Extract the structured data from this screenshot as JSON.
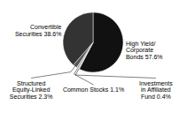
{
  "chart_data": {
    "type": "pie",
    "categories": [
      "High Yield/\nCorporate\nBonds 57.6%",
      "Investments\nin Affiliated\nFund 0.4%",
      "Common Stocks 1.1%",
      "Structured\nEquity-Linked\nSecurities 2.3%",
      "Convertible\nSecurities 38.6%"
    ],
    "values": [
      57.6,
      0.4,
      1.1,
      2.3,
      38.6
    ],
    "colors": [
      "#111111",
      "#888888",
      "#aaaaaa",
      "#555555",
      "#333333"
    ]
  }
}
